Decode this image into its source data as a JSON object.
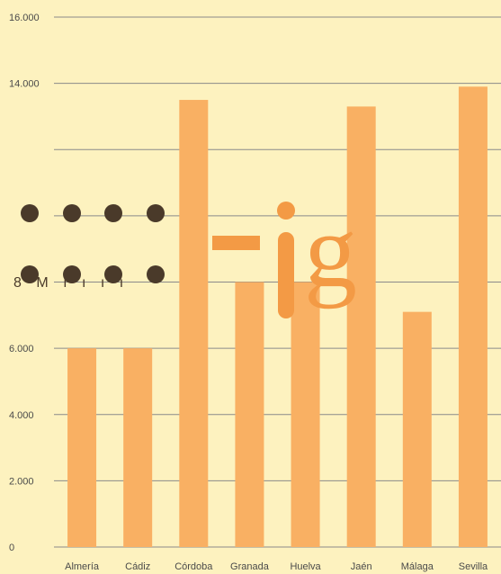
{
  "chart_data": {
    "type": "bar",
    "title": "",
    "xlabel": "",
    "ylabel": "",
    "categories": [
      "Almería",
      "Cádiz",
      "Córdoba",
      "Granada",
      "Huelva",
      "Jaén",
      "Málaga",
      "Sevilla"
    ],
    "values": [
      6000,
      6000,
      13500,
      8000,
      8000,
      13300,
      7100,
      13900
    ],
    "ylim": [
      0,
      16000
    ],
    "yticks": [
      0,
      2000,
      4000,
      6000,
      8000,
      10000,
      12000,
      14000,
      16000
    ],
    "ytick_labels": [
      "0",
      "2.000",
      "4.000",
      "6.000",
      "",
      "",
      "",
      "14.000",
      "16.000"
    ],
    "grid": true,
    "legend": "none",
    "colors": {
      "bar": "#f9b063",
      "background": "#fdf2bf",
      "grid": "#8a8a8a",
      "logo_dots": "#4a3a2a",
      "logo_letters": "#f39a45"
    }
  },
  "watermark": {
    "overlay_text": "8 M ı ı ı ı",
    "logo_text": "-ig"
  }
}
